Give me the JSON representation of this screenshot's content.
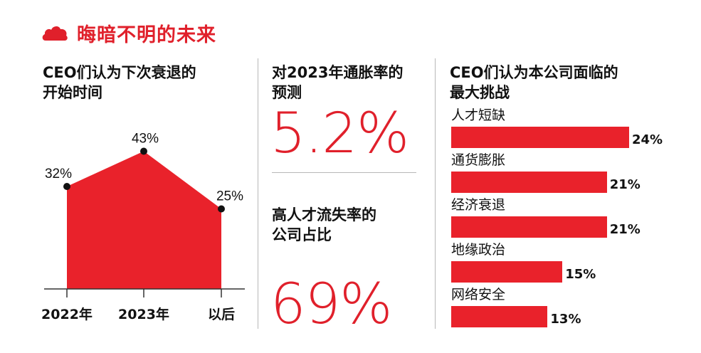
{
  "header": {
    "title": "晦暗不明的未来",
    "icon": "cloud-icon"
  },
  "left": {
    "title_line1": "CEO们认为下次衰退的",
    "title_line2": "开始时间"
  },
  "middle": {
    "top_title_line1": "对2023年通胀率的",
    "top_title_line2": "预测",
    "top_value": "5.2%",
    "bottom_title_line1": "高人才流失率的",
    "bottom_title_line2": "公司占比",
    "bottom_value": "69%"
  },
  "right": {
    "title_line1": "CEO们认为本公司面临的",
    "title_line2": "最大挑战"
  },
  "colors": {
    "accent": "#e9222b"
  },
  "chart_data": [
    {
      "type": "area",
      "title": "CEO们认为下次衰退的开始时间",
      "categories": [
        "2022年",
        "2023年",
        "以后"
      ],
      "values": [
        32,
        43,
        25
      ],
      "value_labels": [
        "32%",
        "43%",
        "25%"
      ],
      "ylim": [
        0,
        50
      ]
    },
    {
      "type": "bar",
      "orientation": "horizontal",
      "title": "CEO们认为本公司面临的最大挑战",
      "categories": [
        "人才短缺",
        "通货膨胀",
        "经济衰退",
        "地缘政治",
        "网络安全"
      ],
      "values": [
        24,
        21,
        21,
        15,
        13
      ],
      "value_labels": [
        "24%",
        "21%",
        "21%",
        "15%",
        "13%"
      ],
      "xlim": [
        0,
        25
      ]
    }
  ]
}
